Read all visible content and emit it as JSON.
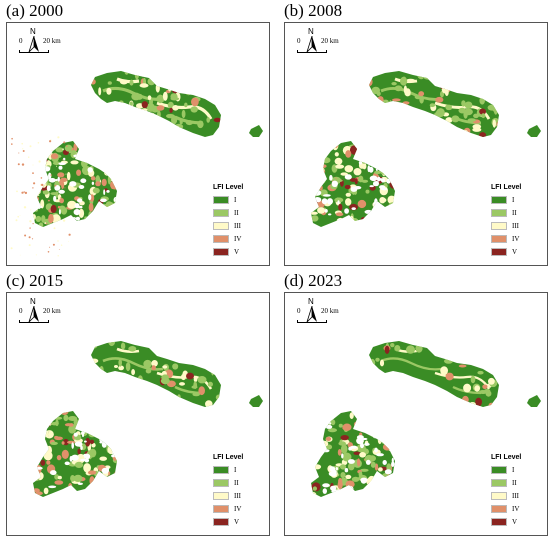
{
  "panels": [
    {
      "title": "(a) 2000",
      "stage": 0
    },
    {
      "title": "(b) 2008",
      "stage": 1
    },
    {
      "title": "(c) 2015",
      "stage": 2
    },
    {
      "title": "(d) 2023",
      "stage": 3
    }
  ],
  "scalebar": {
    "zero": "0",
    "twenty": "20",
    "unit": "km"
  },
  "north_label": "N",
  "legend": {
    "title": "LFI Level",
    "levels": [
      {
        "label": "I",
        "color": "#3a8c25"
      },
      {
        "label": "II",
        "color": "#9bc864"
      },
      {
        "label": "III",
        "color": "#fffac8"
      },
      {
        "label": "IV",
        "color": "#e0906a"
      },
      {
        "label": "V",
        "color": "#8b2420"
      }
    ]
  }
}
